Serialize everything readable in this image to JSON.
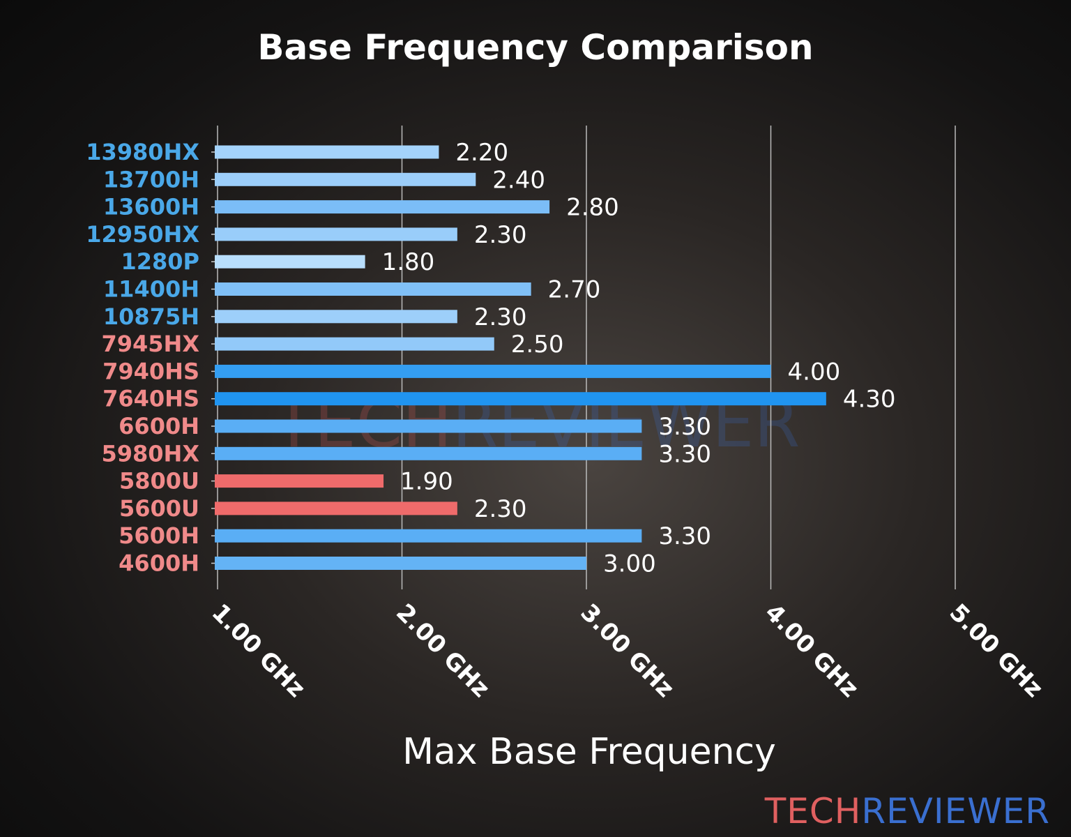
{
  "chart_data": {
    "type": "bar",
    "orientation": "horizontal",
    "title": "Base Frequency Comparison",
    "xlabel": "Max Base Frequency",
    "ylabel": "",
    "xlim": [
      1.0,
      5.0
    ],
    "x_ticks": [
      1,
      2,
      3,
      4,
      5
    ],
    "x_tick_labels": [
      "1.00 GHz",
      "2.00 GHz",
      "3.00 GHz",
      "4.00 GHz",
      "5.00 GHz"
    ],
    "grid": "vertical",
    "categories": [
      "13980HX",
      "13700H",
      "13600H",
      "12950HX",
      "1280P",
      "11400H",
      "10875H",
      "7945HX",
      "7940HS",
      "7640HS",
      "6600H",
      "5980HX",
      "5800U",
      "5600U",
      "5600H",
      "4600H"
    ],
    "values": [
      2.2,
      2.4,
      2.8,
      2.3,
      1.8,
      2.7,
      2.3,
      2.5,
      4.0,
      4.3,
      3.3,
      3.3,
      1.9,
      2.3,
      3.3,
      3.0
    ],
    "data_labels": [
      "2.20",
      "2.40",
      "2.80",
      "2.30",
      "1.80",
      "2.70",
      "2.30",
      "2.50",
      "4.00",
      "4.30",
      "3.30",
      "3.30",
      "1.90",
      "2.30",
      "3.30",
      "3.00"
    ],
    "bar_colors": [
      "#a4d3fb",
      "#9ccefa",
      "#7bbdf7",
      "#99cdfa",
      "#b8defc",
      "#80c0f7",
      "#9dcffa",
      "#92c9f9",
      "#349ef2",
      "#2094f0",
      "#5aaef5",
      "#5aaef5",
      "#ef6b6b",
      "#ef6b6b",
      "#5aaef5",
      "#64b3f5"
    ],
    "label_colors": [
      "#4aa8e8",
      "#4aa8e8",
      "#4aa8e8",
      "#4aa8e8",
      "#4aa8e8",
      "#4aa8e8",
      "#4aa8e8",
      "#f08a8a",
      "#f08a8a",
      "#f08a8a",
      "#f08a8a",
      "#f08a8a",
      "#f08a8a",
      "#f08a8a",
      "#f08a8a",
      "#f08a8a"
    ]
  },
  "watermark": {
    "part1": "TECH",
    "part2": "REVIEWER",
    "color1": "#e06060",
    "color2": "#3a6fd0"
  }
}
